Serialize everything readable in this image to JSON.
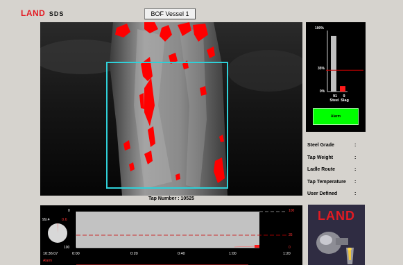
{
  "header": {
    "brand": "LAND",
    "product": "SDS",
    "vessel_button": "BOF Vessel 1"
  },
  "camera": {
    "tap_number_label": "Tap Number : 10525"
  },
  "ratio_panel": {
    "max_label": "100%",
    "threshold_label": "35%",
    "min_label": "0%",
    "threshold_pct": 35,
    "steel": {
      "value": "91",
      "label": "Steel",
      "pct": 91
    },
    "slag": {
      "value": "9",
      "label": "Slag",
      "pct": 9
    },
    "alarm_label": "Alarm"
  },
  "info": [
    {
      "label": "Steel Grade",
      "sep": ":"
    },
    {
      "label": "Tap Weight",
      "sep": ":"
    },
    {
      "label": "Ladle Route",
      "sep": ":"
    },
    {
      "label": "Tap Temperature",
      "sep": ":"
    },
    {
      "label": "User Defined",
      "sep": ":"
    }
  ],
  "trend": {
    "pie_value_left": "99.4",
    "pie_value_right": "0.6",
    "axis_left_top": "0",
    "axis_left_bottom": "100",
    "axis_right_top": "100",
    "axis_right_mid": "35",
    "axis_right_bottom": "0",
    "clock": "10:36:07",
    "time_ticks": [
      "0:00",
      "0:20",
      "0:40",
      "1:00",
      "1:20"
    ],
    "alarm_label": "Alarm"
  },
  "logo_panel": {
    "brand": "LAND"
  },
  "colors": {
    "alarm_green": "#00ff00",
    "brand_red": "#e31b23",
    "threshold_red": "#cc0000"
  }
}
